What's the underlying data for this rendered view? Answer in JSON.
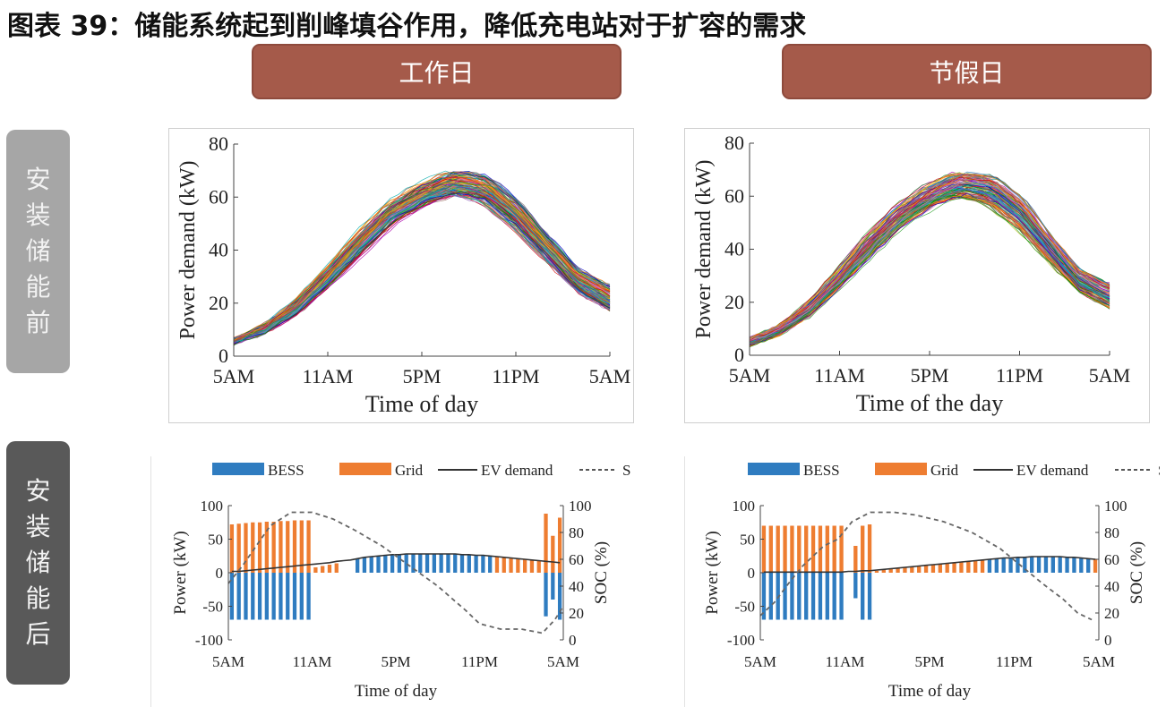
{
  "title": "图表 39：储能系统起到削峰填谷作用，降低充电站对于扩容的需求",
  "columns": [
    "工作日",
    "节假日"
  ],
  "rows": [
    "安装储能前",
    "安装储能后"
  ],
  "colors": {
    "banner": "#a55a4a",
    "row_top": "#a6a6a6",
    "row_bottom": "#595959",
    "bess": "#2f7cc0",
    "grid": "#ee7d31"
  },
  "chart_data": [
    {
      "type": "line",
      "panel": "工作日 / 安装储能前",
      "xlabel": "Time of day",
      "ylabel": "Power demand (kW)",
      "x_ticks": [
        "5AM",
        "11AM",
        "5PM",
        "11PM",
        "5AM"
      ],
      "y_ticks": [
        "0",
        "20",
        "40",
        "60",
        "80"
      ],
      "ylim": [
        0,
        80
      ],
      "x_hours": [
        0,
        24
      ],
      "series_count": 150,
      "envelope": {
        "x_hours": [
          0,
          2,
          4,
          6,
          8,
          10,
          12,
          14,
          16,
          18,
          20,
          22,
          24
        ],
        "min": [
          4,
          8,
          15,
          26,
          38,
          50,
          56,
          59,
          56,
          46,
          34,
          22,
          15
        ],
        "max": [
          7,
          13,
          22,
          34,
          47,
          58,
          66,
          72,
          71,
          62,
          48,
          35,
          29
        ],
        "peak": 75
      }
    },
    {
      "type": "line",
      "panel": "节假日 / 安装储能前",
      "xlabel": "Time of the day",
      "ylabel": "Power demand (kW)",
      "x_ticks": [
        "5AM",
        "11AM",
        "5PM",
        "11PM",
        "5AM"
      ],
      "y_ticks": [
        "0",
        "20",
        "40",
        "60",
        "80"
      ],
      "ylim": [
        0,
        80
      ],
      "x_hours": [
        0,
        24
      ],
      "series_count": 120,
      "envelope": {
        "x_hours": [
          0,
          2,
          4,
          6,
          8,
          10,
          12,
          14,
          16,
          18,
          20,
          22,
          24
        ],
        "min": [
          3,
          7,
          14,
          25,
          37,
          48,
          55,
          58,
          55,
          46,
          34,
          22,
          16
        ],
        "max": [
          7,
          12,
          21,
          33,
          46,
          57,
          65,
          71,
          70,
          62,
          47,
          34,
          29
        ],
        "peak": 72
      }
    },
    {
      "type": "bar",
      "panel": "工作日 / 安装储能后",
      "legend": [
        "BESS",
        "Grid",
        "EV demand",
        "SOC"
      ],
      "xlabel": "Time of day",
      "ylabel_left": "Power (kW)",
      "ylabel_right": "SOC (%)",
      "x_ticks": [
        "5AM",
        "11AM",
        "5PM",
        "11PM",
        "5AM"
      ],
      "y_ticks_left": [
        "-100",
        "-50",
        "0",
        "50",
        "100"
      ],
      "y_ticks_right": [
        "0",
        "20",
        "40",
        "60",
        "80",
        "100"
      ],
      "ylim_left": [
        -100,
        100
      ],
      "ylim_right": [
        0,
        100
      ],
      "x_hours": [
        0,
        24
      ],
      "bar_hours": [
        0,
        0.5,
        1,
        1.5,
        2,
        2.5,
        3,
        3.5,
        4,
        4.5,
        5,
        5.5,
        6,
        6.5,
        7,
        7.5,
        8,
        8.5,
        9,
        9.5,
        10,
        10.5,
        11,
        11.5,
        12,
        12.5,
        13,
        13.5,
        14,
        14.5,
        15,
        15.5,
        16,
        16.5,
        17,
        17.5,
        18,
        18.5,
        19,
        19.5,
        20,
        20.5,
        21,
        21.5,
        22,
        22.5,
        23,
        23.5
      ],
      "bess": [
        -70,
        -70,
        -70,
        -70,
        -70,
        -70,
        -70,
        -70,
        -70,
        -70,
        -70,
        -70,
        0,
        0,
        0,
        0,
        0,
        0,
        21,
        23,
        24,
        25,
        26,
        27,
        27,
        28,
        28,
        28,
        28,
        28,
        28,
        28,
        28,
        27,
        27,
        26,
        26,
        25,
        0,
        0,
        0,
        0,
        0,
        0,
        0,
        -65,
        -40,
        -70
      ],
      "grid": [
        72,
        73,
        74,
        75,
        75,
        76,
        76,
        77,
        77,
        78,
        78,
        78,
        8,
        10,
        12,
        14,
        0,
        0,
        0,
        0,
        0,
        0,
        0,
        0,
        0,
        0,
        0,
        0,
        0,
        0,
        0,
        0,
        0,
        0,
        0,
        0,
        0,
        0,
        24,
        23,
        22,
        21,
        20,
        19,
        18,
        88,
        55,
        82
      ],
      "ev_demand": [
        2,
        2,
        3,
        4,
        5,
        6,
        7,
        8,
        9,
        10,
        11,
        12,
        13,
        14,
        15,
        17,
        18,
        19,
        21,
        23,
        24,
        25,
        26,
        27,
        27,
        28,
        28,
        28,
        28,
        28,
        28,
        28,
        28,
        27,
        27,
        26,
        26,
        25,
        24,
        23,
        22,
        21,
        20,
        19,
        18,
        17,
        16,
        15
      ],
      "soc_hours": [
        0,
        1,
        2,
        3,
        4.5,
        6,
        7.5,
        9,
        11,
        13,
        15,
        17,
        18,
        19.5,
        21,
        22.5,
        23.4,
        24
      ],
      "soc": [
        42,
        55,
        70,
        85,
        95,
        95,
        90,
        82,
        70,
        55,
        40,
        22,
        12,
        8,
        8,
        5,
        15,
        25
      ]
    },
    {
      "type": "bar",
      "panel": "节假日 / 安装储能后",
      "legend": [
        "BESS",
        "Grid",
        "EV demand",
        "SOC"
      ],
      "xlabel": "Time of day",
      "ylabel_left": "Power (kW)",
      "ylabel_right": "SOC (%)",
      "x_ticks": [
        "5AM",
        "11AM",
        "5PM",
        "11PM",
        "5AM"
      ],
      "y_ticks_left": [
        "-100",
        "-50",
        "0",
        "50",
        "100"
      ],
      "y_ticks_right": [
        "0",
        "20",
        "40",
        "60",
        "80",
        "100"
      ],
      "ylim_left": [
        -100,
        100
      ],
      "ylim_right": [
        0,
        100
      ],
      "x_hours": [
        0,
        24
      ],
      "bar_hours": [
        0,
        0.5,
        1,
        1.5,
        2,
        2.5,
        3,
        3.5,
        4,
        4.5,
        5,
        5.5,
        6,
        6.5,
        7,
        7.5,
        8,
        8.5,
        9,
        9.5,
        10,
        10.5,
        11,
        11.5,
        12,
        12.5,
        13,
        13.5,
        14,
        14.5,
        15,
        15.5,
        16,
        16.5,
        17,
        17.5,
        18,
        18.5,
        19,
        19.5,
        20,
        20.5,
        21,
        21.5,
        22,
        22.5,
        23,
        23.5
      ],
      "bess": [
        -70,
        -70,
        -70,
        -70,
        -70,
        -70,
        -70,
        -70,
        -70,
        -70,
        -70,
        -70,
        0,
        -38,
        -70,
        -70,
        0,
        0,
        0,
        0,
        0,
        0,
        0,
        0,
        0,
        0,
        0,
        0,
        0,
        0,
        0,
        0,
        20,
        21,
        22,
        22,
        23,
        23,
        24,
        24,
        24,
        24,
        24,
        23,
        23,
        22,
        21,
        0
      ],
      "grid": [
        70,
        70,
        70,
        70,
        70,
        70,
        70,
        70,
        70,
        70,
        70,
        70,
        0,
        40,
        70,
        72,
        3,
        5,
        6,
        7,
        8,
        9,
        10,
        11,
        12,
        13,
        14,
        15,
        16,
        17,
        18,
        19,
        0,
        0,
        0,
        0,
        0,
        0,
        0,
        0,
        0,
        0,
        0,
        0,
        0,
        0,
        0,
        20
      ],
      "ev_demand": [
        1,
        1,
        1,
        1,
        1,
        1,
        1,
        1,
        1,
        1,
        1,
        1,
        2,
        2,
        3,
        3,
        4,
        5,
        6,
        7,
        8,
        9,
        10,
        11,
        12,
        13,
        14,
        15,
        16,
        17,
        18,
        19,
        20,
        21,
        22,
        22,
        23,
        23,
        24,
        24,
        24,
        24,
        24,
        23,
        23,
        22,
        21,
        20
      ],
      "soc_hours": [
        0,
        1,
        2,
        3,
        4.5,
        5.5,
        6.5,
        7.8,
        9.5,
        11,
        13,
        15,
        17,
        18.5,
        20,
        21.5,
        22.5,
        23.5
      ],
      "soc": [
        18,
        28,
        42,
        55,
        70,
        75,
        88,
        95,
        95,
        93,
        88,
        80,
        68,
        55,
        42,
        30,
        20,
        15
      ]
    }
  ]
}
